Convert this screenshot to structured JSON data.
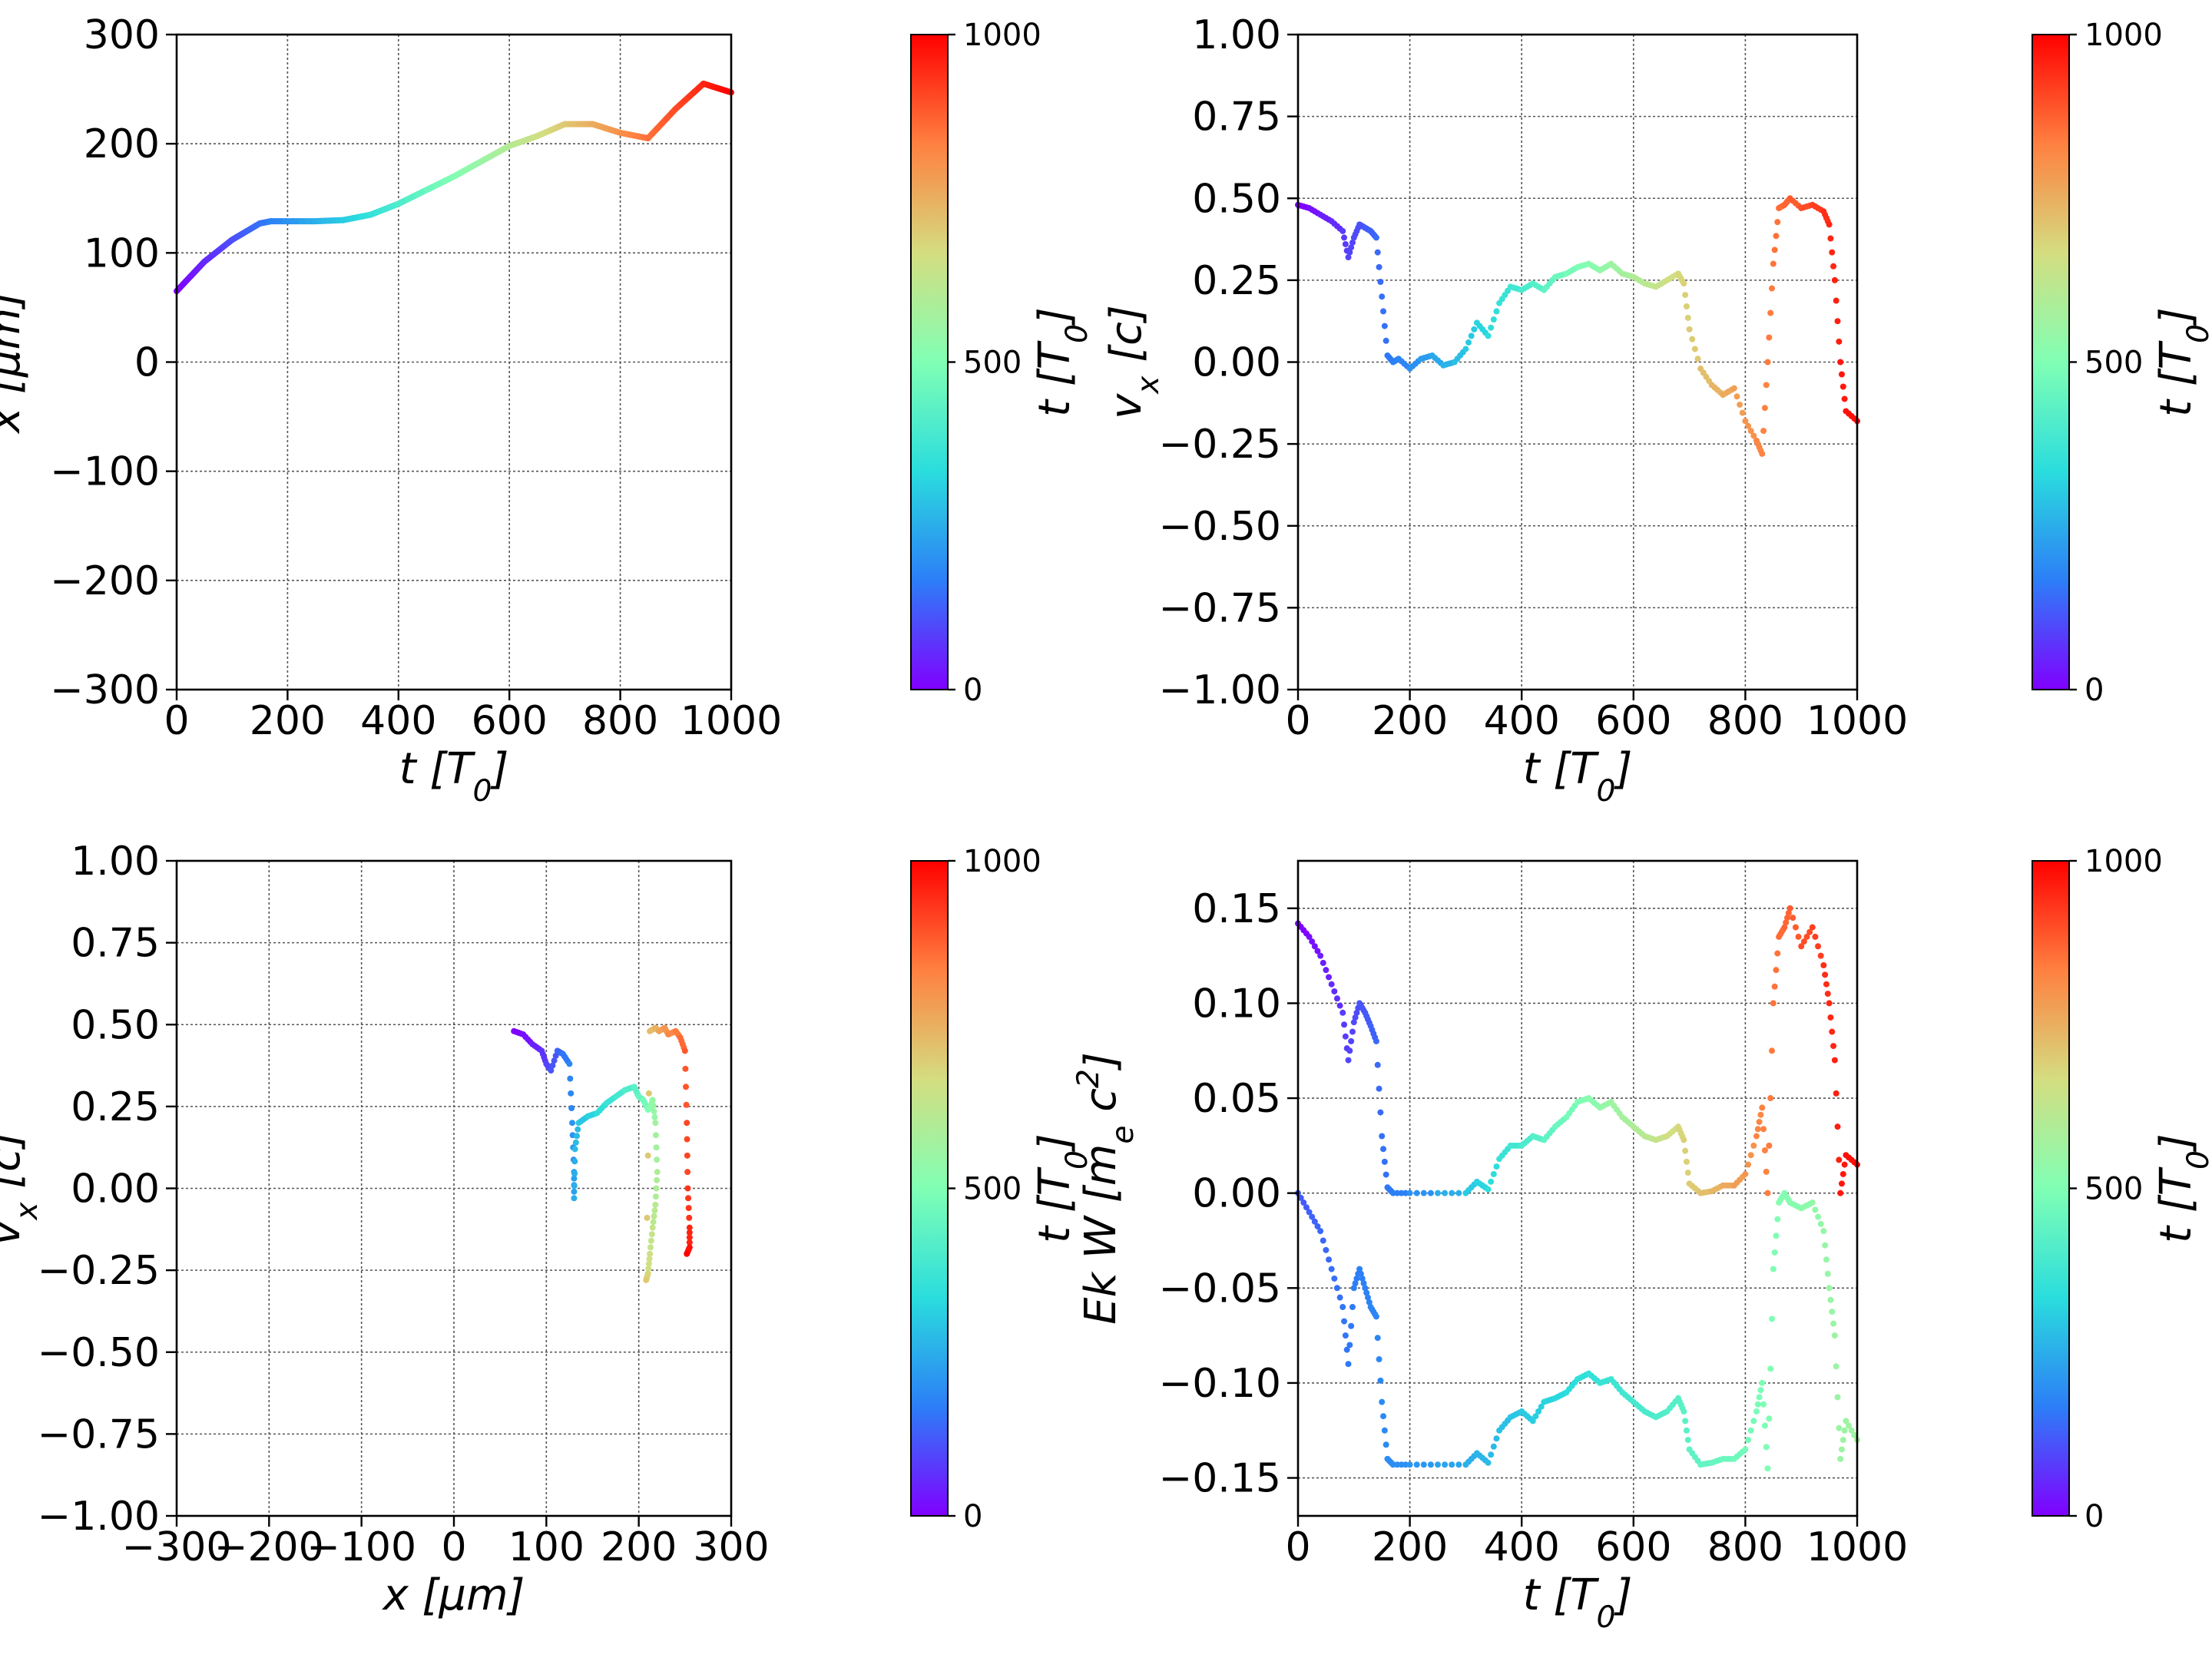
{
  "colormap": {
    "name": "rainbow",
    "stops": [
      "#8000ff",
      "#2c7ef7",
      "#2adddd",
      "#80ffb4",
      "#d4dd80",
      "#ff8040",
      "#ff0000"
    ]
  },
  "colorbar": {
    "label": "t [T_0]",
    "min": 0,
    "max": 1000,
    "ticks": [
      "0",
      "500",
      "1000"
    ]
  },
  "chart_data": [
    {
      "id": "x-vs-t",
      "type": "line",
      "xlabel": "t  [T_0]",
      "ylabel": "x  [μm]",
      "xlim": [
        0,
        1000
      ],
      "ylim": [
        -300,
        300
      ],
      "xticks": [
        0,
        200,
        400,
        600,
        800,
        1000
      ],
      "yticks": [
        -300,
        -200,
        -100,
        0,
        100,
        200,
        300
      ],
      "xtick_labels": [
        "0",
        "200",
        "400",
        "600",
        "800",
        "1000"
      ],
      "ytick_labels": [
        "−300",
        "−200",
        "−100",
        "0",
        "100",
        "200",
        "300"
      ],
      "grid": true,
      "color_by": "t",
      "series": [
        {
          "x": [
            0,
            50,
            100,
            150,
            170,
            250,
            300,
            350,
            400,
            500,
            600,
            650,
            700,
            750,
            800,
            850,
            900,
            950,
            1000
          ],
          "y": [
            65,
            92,
            112,
            127,
            129,
            129,
            130,
            135,
            145,
            170,
            198,
            207,
            218,
            218,
            210,
            205,
            232,
            255,
            247
          ]
        }
      ]
    },
    {
      "id": "vx-vs-t",
      "type": "scatter",
      "xlabel": "t [T_0]",
      "ylabel": "v_x [c]",
      "xlim": [
        0,
        1000
      ],
      "ylim": [
        -1.0,
        1.0
      ],
      "xticks": [
        0,
        200,
        400,
        600,
        800,
        1000
      ],
      "yticks": [
        -1.0,
        -0.75,
        -0.5,
        -0.25,
        0.0,
        0.25,
        0.5,
        0.75,
        1.0
      ],
      "xtick_labels": [
        "0",
        "200",
        "400",
        "600",
        "800",
        "1000"
      ],
      "ytick_labels": [
        "−1.00",
        "−0.75",
        "−0.50",
        "−0.25",
        "0.00",
        "0.25",
        "0.50",
        "0.75",
        "1.00"
      ],
      "grid": true,
      "color_by": "t",
      "series": [
        {
          "x": [
            0,
            20,
            40,
            60,
            80,
            90,
            100,
            110,
            120,
            130,
            140,
            150,
            160,
            170,
            180,
            200,
            220,
            240,
            260,
            280,
            300,
            320,
            340,
            360,
            380,
            400,
            420,
            440,
            460,
            480,
            500,
            520,
            540,
            560,
            580,
            600,
            620,
            640,
            660,
            680,
            690,
            700,
            720,
            740,
            760,
            780,
            800,
            820,
            830,
            840,
            850,
            860,
            870,
            880,
            900,
            920,
            940,
            950,
            960,
            970,
            980,
            1000
          ],
          "y": [
            0.48,
            0.47,
            0.45,
            0.43,
            0.4,
            0.32,
            0.38,
            0.42,
            0.41,
            0.4,
            0.38,
            0.2,
            0.02,
            0.0,
            0.01,
            -0.02,
            0.01,
            0.02,
            -0.01,
            0.0,
            0.04,
            0.12,
            0.08,
            0.18,
            0.23,
            0.22,
            0.24,
            0.22,
            0.26,
            0.27,
            0.29,
            0.3,
            0.28,
            0.3,
            0.27,
            0.26,
            0.24,
            0.23,
            0.25,
            0.27,
            0.24,
            0.1,
            -0.02,
            -0.07,
            -0.1,
            -0.08,
            -0.18,
            -0.24,
            -0.28,
            0.0,
            0.3,
            0.47,
            0.48,
            0.5,
            0.47,
            0.48,
            0.46,
            0.42,
            0.25,
            0.0,
            -0.15,
            -0.18
          ]
        }
      ]
    },
    {
      "id": "vx-vs-x",
      "type": "scatter",
      "xlabel": "x [μm]",
      "ylabel": "v_x [c]",
      "xlim": [
        -300,
        300
      ],
      "ylim": [
        -1.0,
        1.0
      ],
      "xticks": [
        -300,
        -200,
        -100,
        0,
        100,
        200,
        300
      ],
      "yticks": [
        -1.0,
        -0.75,
        -0.5,
        -0.25,
        0.0,
        0.25,
        0.5,
        0.75,
        1.0
      ],
      "xtick_labels": [
        "−300",
        "−200",
        "−100",
        "0",
        "100",
        "200",
        "300"
      ],
      "ytick_labels": [
        "−1.00",
        "−0.75",
        "−0.50",
        "−0.25",
        "0.00",
        "0.25",
        "0.50",
        "0.75",
        "1.00"
      ],
      "grid": true,
      "color_by": "t",
      "series": [
        {
          "x": [
            65,
            75,
            85,
            95,
            100,
            105,
            112,
            118,
            125,
            128,
            130,
            130,
            131,
            135,
            145,
            155,
            165,
            175,
            185,
            195,
            200,
            205,
            210,
            213,
            215,
            218,
            220,
            218,
            215,
            212,
            210,
            208,
            212,
            218,
            222,
            228,
            232,
            240,
            245,
            250,
            252,
            253,
            255,
            255,
            252
          ],
          "y": [
            0.48,
            0.47,
            0.44,
            0.42,
            0.38,
            0.36,
            0.42,
            0.41,
            0.38,
            0.2,
            0.05,
            -0.03,
            0.12,
            0.2,
            0.22,
            0.23,
            0.26,
            0.28,
            0.3,
            0.31,
            0.28,
            0.27,
            0.24,
            0.25,
            0.27,
            0.2,
            0.05,
            -0.05,
            -0.12,
            -0.2,
            -0.26,
            -0.28,
            0.48,
            0.49,
            0.48,
            0.49,
            0.47,
            0.48,
            0.46,
            0.42,
            0.2,
            0.0,
            -0.12,
            -0.18,
            -0.2
          ]
        }
      ]
    },
    {
      "id": "ek-w-vs-t",
      "type": "scatter",
      "xlabel": "t [T_0]",
      "ylabel": "Ek W [m_e c^2]",
      "xlim": [
        0,
        1000
      ],
      "ylim": [
        -0.17,
        0.175
      ],
      "xticks": [
        0,
        200,
        400,
        600,
        800,
        1000
      ],
      "yticks": [
        -0.15,
        -0.1,
        -0.05,
        0.0,
        0.05,
        0.1,
        0.15
      ],
      "xtick_labels": [
        "0",
        "200",
        "400",
        "600",
        "800",
        "1000"
      ],
      "ytick_labels": [
        "−0.15",
        "−0.10",
        "−0.05",
        "0.00",
        "0.05",
        "0.10",
        "0.15"
      ],
      "grid": true,
      "color_by": "t",
      "series": [
        {
          "name": "Ek",
          "x": [
            0,
            20,
            40,
            60,
            80,
            90,
            100,
            110,
            120,
            130,
            140,
            150,
            160,
            170,
            200,
            250,
            300,
            320,
            340,
            360,
            380,
            400,
            420,
            440,
            460,
            480,
            500,
            520,
            540,
            560,
            580,
            600,
            620,
            640,
            660,
            680,
            690,
            700,
            720,
            740,
            760,
            780,
            800,
            820,
            830,
            840,
            850,
            860,
            870,
            880,
            900,
            920,
            940,
            950,
            960,
            970,
            980,
            1000
          ],
          "y": [
            0.142,
            0.135,
            0.125,
            0.11,
            0.095,
            0.07,
            0.09,
            0.1,
            0.095,
            0.088,
            0.08,
            0.03,
            0.003,
            0.0,
            0.0,
            0.0,
            0.0,
            0.006,
            0.002,
            0.018,
            0.025,
            0.025,
            0.03,
            0.028,
            0.035,
            0.04,
            0.048,
            0.05,
            0.045,
            0.048,
            0.04,
            0.035,
            0.03,
            0.028,
            0.03,
            0.035,
            0.028,
            0.005,
            0.0,
            0.001,
            0.004,
            0.004,
            0.01,
            0.03,
            0.045,
            0.0,
            0.1,
            0.135,
            0.14,
            0.15,
            0.13,
            0.14,
            0.12,
            0.1,
            0.07,
            0.0,
            0.02,
            0.015
          ]
        },
        {
          "name": "W",
          "x": [
            0,
            20,
            40,
            60,
            80,
            90,
            100,
            110,
            120,
            130,
            140,
            150,
            160,
            170,
            200,
            250,
            300,
            320,
            340,
            360,
            380,
            400,
            420,
            440,
            460,
            480,
            500,
            520,
            540,
            560,
            580,
            600,
            620,
            640,
            660,
            680,
            690,
            700,
            720,
            740,
            760,
            780,
            800,
            820,
            830,
            840,
            850,
            860,
            870,
            880,
            900,
            920,
            940,
            950,
            960,
            970,
            980,
            1000
          ],
          "y": [
            0.0,
            -0.01,
            -0.02,
            -0.04,
            -0.06,
            -0.09,
            -0.05,
            -0.04,
            -0.05,
            -0.06,
            -0.065,
            -0.11,
            -0.14,
            -0.143,
            -0.143,
            -0.143,
            -0.143,
            -0.137,
            -0.142,
            -0.125,
            -0.118,
            -0.115,
            -0.12,
            -0.11,
            -0.108,
            -0.105,
            -0.098,
            -0.095,
            -0.1,
            -0.098,
            -0.105,
            -0.11,
            -0.115,
            -0.118,
            -0.115,
            -0.108,
            -0.115,
            -0.135,
            -0.143,
            -0.142,
            -0.14,
            -0.14,
            -0.135,
            -0.115,
            -0.1,
            -0.145,
            -0.04,
            -0.005,
            0.0,
            -0.005,
            -0.008,
            -0.005,
            -0.02,
            -0.05,
            -0.075,
            -0.14,
            -0.12,
            -0.13
          ]
        }
      ]
    }
  ]
}
